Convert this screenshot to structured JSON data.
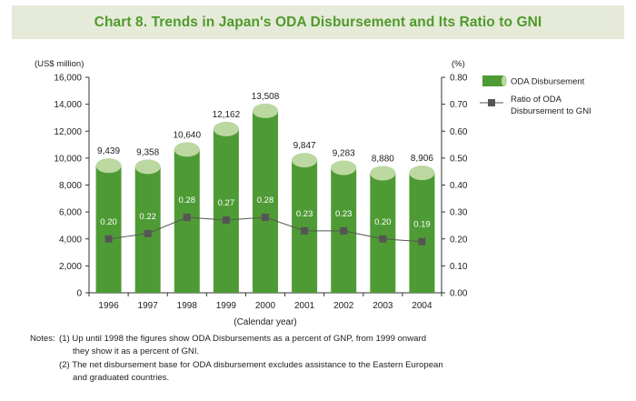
{
  "title": "Chart 8. Trends in Japan's ODA Disbursement and Its Ratio to GNI",
  "colors": {
    "title_bg": "#e6ead8",
    "title_text": "#4f9a2c",
    "bar_body": "#4e9b35",
    "bar_top": "#bcd8a1",
    "ratio_line": "#555555",
    "marker": "#555555"
  },
  "chart_data": {
    "type": "bar",
    "title": "Chart 8. Trends in Japan's ODA Disbursement and Its Ratio to GNI",
    "categories": [
      "1996",
      "1997",
      "1998",
      "1999",
      "2000",
      "2001",
      "2002",
      "2003",
      "2004"
    ],
    "xlabel": "(Calendar year)",
    "y_left": {
      "unit_label": "(US$ million)",
      "range": [
        0,
        16000
      ],
      "ticks": [
        "0",
        "2,000",
        "4,000",
        "6,000",
        "8,000",
        "10,000",
        "12,000",
        "14,000",
        "16,000"
      ],
      "tick_values": [
        0,
        2000,
        4000,
        6000,
        8000,
        10000,
        12000,
        14000,
        16000
      ]
    },
    "y_right": {
      "unit_label": "(%)",
      "range": [
        0,
        0.8
      ],
      "ticks": [
        "0.00",
        "0.10",
        "0.20",
        "0.30",
        "0.40",
        "0.50",
        "0.60",
        "0.70",
        "0.80"
      ],
      "tick_values": [
        0,
        0.1,
        0.2,
        0.3,
        0.4,
        0.5,
        0.6,
        0.7,
        0.8
      ]
    },
    "grid": false,
    "legend_position": "top-right",
    "series": [
      {
        "name": "ODA Disbursement",
        "type": "bar",
        "axis": "left",
        "values": [
          9439,
          9358,
          10640,
          12162,
          13508,
          9847,
          9283,
          8880,
          8906
        ],
        "labels": [
          "9,439",
          "9,358",
          "10,640",
          "12,162",
          "13,508",
          "9,847",
          "9,283",
          "8,880",
          "8,906"
        ]
      },
      {
        "name": "Ratio of ODA Disbursement to GNI",
        "name_lines": [
          "Ratio of ODA",
          "Disbursement to GNI"
        ],
        "type": "line",
        "axis": "right",
        "values": [
          0.2,
          0.22,
          0.28,
          0.27,
          0.28,
          0.23,
          0.23,
          0.2,
          0.19
        ],
        "labels": [
          "0.20",
          "0.22",
          "0.28",
          "0.27",
          "0.28",
          "0.23",
          "0.23",
          "0.20",
          "0.19"
        ]
      }
    ]
  },
  "notes": {
    "head": "Notes:",
    "items": [
      {
        "marker": "(1)",
        "line1": "Up until 1998 the figures show ODA Disbursements as a percent of GNP, from 1999 onward",
        "line2": "they show it as a percent of GNI."
      },
      {
        "marker": "(2)",
        "line1": "The net disbursement base for ODA disbursement excludes assistance to the Eastern European",
        "line2": "and graduated countries."
      }
    ]
  }
}
